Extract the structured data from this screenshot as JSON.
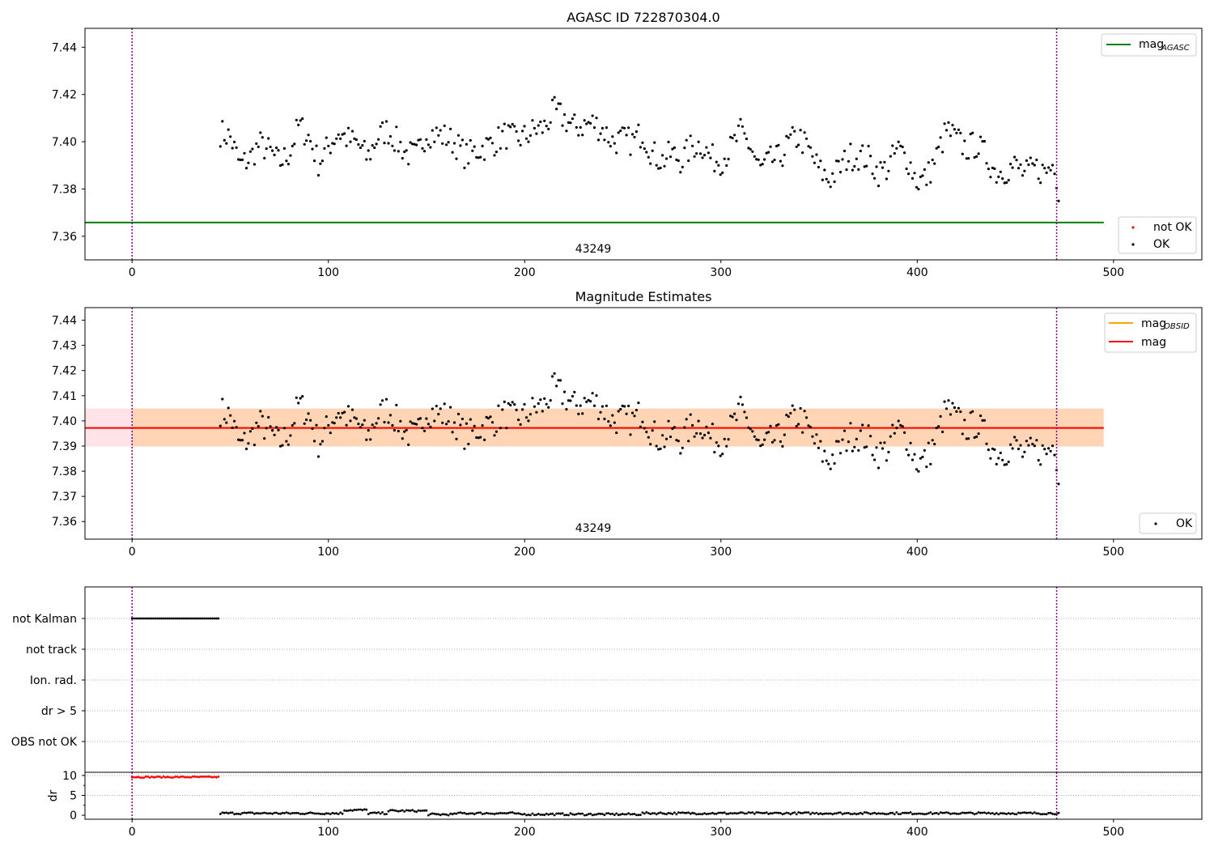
{
  "chart_data": [
    {
      "type": "scatter",
      "title": "AGASC ID 722870304.0",
      "xlabel": "",
      "ylabel": "",
      "xlim": [
        -24,
        545
      ],
      "ylim": [
        7.35,
        7.448
      ],
      "x_ticks": [
        0,
        100,
        200,
        300,
        400,
        500
      ],
      "y_ticks": [
        7.36,
        7.38,
        7.4,
        7.42,
        7.44
      ],
      "y_tick_labels": [
        "7.36",
        "7.38",
        "7.40",
        "7.42",
        "7.44"
      ],
      "obsid_label": "43249",
      "obsid_label_x": 236,
      "vlines": [
        0,
        471
      ],
      "hlines": [
        {
          "name": "mag_AGASC",
          "y": 7.3658,
          "x_range": [
            -24,
            495
          ],
          "color": "#008000"
        }
      ],
      "series": [
        {
          "name": "not OK",
          "color": "#ff0000",
          "count": 0
        },
        {
          "name": "OK",
          "color": "#000000",
          "x_range": [
            45,
            472
          ],
          "count": 420
        }
      ],
      "profile": {
        "x": [
          45,
          50,
          55,
          60,
          65,
          70,
          75,
          80,
          85,
          90,
          95,
          100,
          105,
          110,
          115,
          120,
          125,
          130,
          135,
          140,
          145,
          150,
          155,
          160,
          165,
          170,
          175,
          180,
          185,
          190,
          195,
          200,
          205,
          210,
          215,
          220,
          225,
          230,
          235,
          240,
          245,
          250,
          255,
          260,
          265,
          270,
          275,
          280,
          285,
          290,
          295,
          300,
          305,
          310,
          315,
          320,
          325,
          330,
          335,
          340,
          345,
          350,
          355,
          360,
          365,
          370,
          375,
          380,
          385,
          390,
          395,
          400,
          405,
          410,
          415,
          420,
          425,
          430,
          435,
          440,
          445,
          450,
          455,
          460,
          465,
          470,
          472
        ],
        "y": [
          7.404,
          7.402,
          7.39,
          7.393,
          7.399,
          7.396,
          7.391,
          7.395,
          7.407,
          7.402,
          7.391,
          7.398,
          7.404,
          7.401,
          7.399,
          7.393,
          7.402,
          7.405,
          7.4,
          7.395,
          7.394,
          7.404,
          7.403,
          7.402,
          7.399,
          7.394,
          7.396,
          7.398,
          7.4,
          7.403,
          7.401,
          7.402,
          7.405,
          7.406,
          7.413,
          7.41,
          7.406,
          7.407,
          7.408,
          7.405,
          7.4,
          7.401,
          7.4,
          7.404,
          7.395,
          7.392,
          7.395,
          7.392,
          7.398,
          7.399,
          7.393,
          7.392,
          7.397,
          7.404,
          7.398,
          7.388,
          7.392,
          7.393,
          7.4,
          7.402,
          7.396,
          7.388,
          7.384,
          7.388,
          7.394,
          7.394,
          7.393,
          7.387,
          7.389,
          7.397,
          7.393,
          7.383,
          7.385,
          7.394,
          7.405,
          7.401,
          7.397,
          7.399,
          7.394,
          7.387,
          7.388,
          7.39,
          7.386,
          7.389,
          7.387,
          7.391,
          7.38
        ]
      },
      "legends": [
        {
          "position": "upper right",
          "entries": [
            {
              "label": "mag",
              "subscript": "AGASC",
              "marker": "line",
              "color": "#008000"
            }
          ]
        },
        {
          "position": "lower right",
          "entries": [
            {
              "label": "not OK",
              "marker": "dot",
              "color": "#ff0000"
            },
            {
              "label": "OK",
              "marker": "dot",
              "color": "#000000"
            }
          ]
        }
      ]
    },
    {
      "type": "scatter",
      "title": "Magnitude Estimates",
      "xlabel": "",
      "ylabel": "",
      "xlim": [
        -24,
        545
      ],
      "ylim": [
        7.353,
        7.445
      ],
      "x_ticks": [
        0,
        100,
        200,
        300,
        400,
        500
      ],
      "y_ticks": [
        7.36,
        7.37,
        7.38,
        7.39,
        7.4,
        7.41,
        7.42,
        7.43,
        7.44
      ],
      "y_tick_labels": [
        "7.36",
        "7.37",
        "7.38",
        "7.39",
        "7.40",
        "7.41",
        "7.42",
        "7.43",
        "7.44"
      ],
      "obsid_label": "43249",
      "obsid_label_x": 236,
      "vlines": [
        0,
        471
      ],
      "mag": 7.3972,
      "mag_band": [
        7.3898,
        7.4049
      ],
      "mag_obsid": 7.3972,
      "bands_x_range": [
        -24,
        495
      ],
      "series": [
        {
          "name": "OK",
          "color": "#000000",
          "x_range": [
            45,
            472
          ],
          "count": 420
        }
      ],
      "legends": [
        {
          "position": "upper right",
          "entries": [
            {
              "label": "mag",
              "subscript": "OBSID",
              "marker": "line",
              "color": "#ffa500"
            },
            {
              "label": "mag",
              "marker": "line",
              "color": "#ff0000"
            }
          ]
        },
        {
          "position": "lower right",
          "entries": [
            {
              "label": "OK",
              "marker": "dot",
              "color": "#000000"
            }
          ]
        }
      ]
    },
    {
      "type": "scatter",
      "title": "",
      "xlabel": "",
      "ylabel": "",
      "xlim": [
        -24,
        545
      ],
      "categories": [
        "not Kalman",
        "not track",
        "Ion. rad.",
        "dr > 5",
        "OBS not OK"
      ],
      "grid": "horizontal dotted",
      "vlines": [
        0,
        471
      ],
      "series": [
        {
          "name": "not Kalman",
          "color": "#000000",
          "x_range": [
            0,
            44
          ],
          "count": 45
        }
      ]
    },
    {
      "type": "scatter",
      "title": "",
      "xlabel": "",
      "ylabel": "dr",
      "xlim": [
        -24,
        545
      ],
      "ylim": [
        -1,
        10.8
      ],
      "x_ticks": [
        0,
        100,
        200,
        300,
        400,
        500
      ],
      "y_ticks": [
        0,
        5,
        10
      ],
      "y_tick_labels": [
        "0",
        "5",
        "10"
      ],
      "vlines": [
        0,
        471
      ],
      "series": [
        {
          "name": "dr > 5",
          "color": "#ff0000",
          "x_range": [
            0,
            44
          ],
          "y": 9.6
        },
        {
          "name": "dr",
          "color": "#000000",
          "x_range": [
            45,
            472
          ],
          "typical": 0.5,
          "max": 1.5
        }
      ]
    }
  ]
}
